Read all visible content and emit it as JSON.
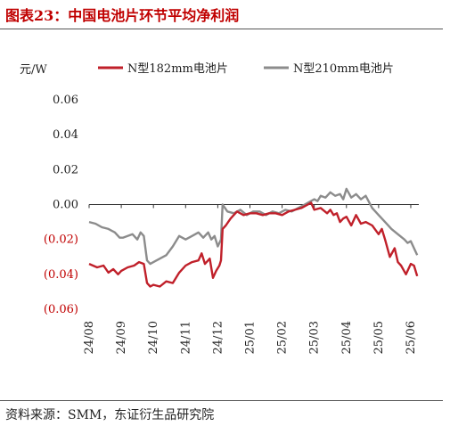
{
  "figure": {
    "title": "图表23：中国电池片环节平均净利润",
    "source": "资料来源：SMM，东证衍生品研究院"
  },
  "colors": {
    "title": "#c00000",
    "series_182": "#c0202a",
    "series_210": "#8c8c8c",
    "negative_tick": "#c00000",
    "positive_tick": "#222222",
    "axis": "#333333"
  },
  "chart_data": {
    "type": "line",
    "ylabel": "元/W",
    "ylim": [
      -0.06,
      0.06
    ],
    "y_ticks": [
      {
        "value": 0.06,
        "label": "0.06"
      },
      {
        "value": 0.04,
        "label": "0.04"
      },
      {
        "value": 0.02,
        "label": "0.02"
      },
      {
        "value": 0.0,
        "label": "0.00"
      },
      {
        "value": -0.02,
        "label": "(0.02)"
      },
      {
        "value": -0.04,
        "label": "(0.04)"
      },
      {
        "value": -0.06,
        "label": "(0.06)"
      }
    ],
    "x_ticks": [
      "24/08",
      "24/09",
      "24/10",
      "24/11",
      "24/12",
      "25/01",
      "25/02",
      "25/03",
      "25/04",
      "25/05",
      "25/06"
    ],
    "xlim": [
      0,
      10.25
    ],
    "grid": false,
    "legend_position": "top",
    "series": [
      {
        "name": "N型182mm电池片",
        "x": [
          0.0,
          0.25,
          0.45,
          0.6,
          0.75,
          0.9,
          1.0,
          1.2,
          1.4,
          1.55,
          1.7,
          1.8,
          1.9,
          2.0,
          2.2,
          2.4,
          2.6,
          2.8,
          3.0,
          3.2,
          3.4,
          3.5,
          3.6,
          3.75,
          3.85,
          3.95,
          4.05,
          4.1,
          4.15,
          4.25,
          4.4,
          4.6,
          4.8,
          5.0,
          5.2,
          5.4,
          5.6,
          5.8,
          6.0,
          6.2,
          6.4,
          6.6,
          6.8,
          6.9,
          7.0,
          7.2,
          7.4,
          7.5,
          7.6,
          7.7,
          7.8,
          7.9,
          8.0,
          8.15,
          8.3,
          8.45,
          8.6,
          8.8,
          9.0,
          9.1,
          9.2,
          9.35,
          9.5,
          9.6,
          9.7,
          9.85,
          10.0,
          10.1,
          10.2
        ],
        "values": [
          -0.034,
          -0.036,
          -0.035,
          -0.039,
          -0.037,
          -0.04,
          -0.038,
          -0.036,
          -0.035,
          -0.033,
          -0.034,
          -0.045,
          -0.047,
          -0.046,
          -0.047,
          -0.044,
          -0.045,
          -0.039,
          -0.035,
          -0.033,
          -0.032,
          -0.028,
          -0.034,
          -0.031,
          -0.042,
          -0.038,
          -0.035,
          -0.032,
          -0.014,
          -0.012,
          -0.008,
          -0.004,
          -0.006,
          -0.005,
          -0.005,
          -0.006,
          -0.005,
          -0.005,
          -0.006,
          -0.004,
          -0.003,
          -0.002,
          0.0,
          0.001,
          -0.003,
          -0.002,
          -0.005,
          -0.003,
          -0.006,
          -0.005,
          -0.01,
          -0.008,
          -0.007,
          -0.012,
          -0.006,
          -0.011,
          -0.01,
          -0.012,
          -0.017,
          -0.014,
          -0.02,
          -0.03,
          -0.025,
          -0.033,
          -0.035,
          -0.04,
          -0.034,
          -0.035,
          -0.041
        ]
      },
      {
        "name": "N型210mm电池片",
        "x": [
          0.0,
          0.2,
          0.4,
          0.6,
          0.8,
          0.95,
          1.05,
          1.2,
          1.35,
          1.5,
          1.6,
          1.7,
          1.8,
          1.9,
          2.0,
          2.2,
          2.4,
          2.6,
          2.8,
          3.0,
          3.2,
          3.4,
          3.55,
          3.7,
          3.8,
          3.9,
          4.0,
          4.1,
          4.15,
          4.3,
          4.5,
          4.7,
          4.9,
          5.1,
          5.3,
          5.5,
          5.7,
          5.9,
          6.1,
          6.3,
          6.5,
          6.7,
          6.9,
          7.0,
          7.1,
          7.2,
          7.35,
          7.5,
          7.65,
          7.8,
          7.9,
          8.0,
          8.15,
          8.3,
          8.45,
          8.6,
          8.8,
          9.0,
          9.2,
          9.4,
          9.6,
          9.8,
          9.9,
          10.0,
          10.1,
          10.2
        ],
        "values": [
          -0.01,
          -0.011,
          -0.013,
          -0.014,
          -0.016,
          -0.019,
          -0.019,
          -0.018,
          -0.017,
          -0.02,
          -0.016,
          -0.018,
          -0.032,
          -0.034,
          -0.033,
          -0.031,
          -0.029,
          -0.024,
          -0.018,
          -0.02,
          -0.018,
          -0.016,
          -0.019,
          -0.016,
          -0.02,
          -0.018,
          -0.024,
          -0.02,
          0.0,
          -0.004,
          -0.005,
          -0.003,
          -0.006,
          -0.004,
          -0.004,
          -0.006,
          -0.004,
          -0.005,
          -0.003,
          -0.004,
          -0.002,
          0.0,
          0.002,
          0.003,
          0.002,
          0.005,
          0.004,
          0.007,
          0.005,
          0.006,
          0.003,
          0.009,
          0.004,
          0.006,
          0.003,
          0.005,
          -0.002,
          -0.006,
          -0.01,
          -0.014,
          -0.017,
          -0.02,
          -0.022,
          -0.021,
          -0.025,
          -0.029
        ]
      }
    ]
  }
}
